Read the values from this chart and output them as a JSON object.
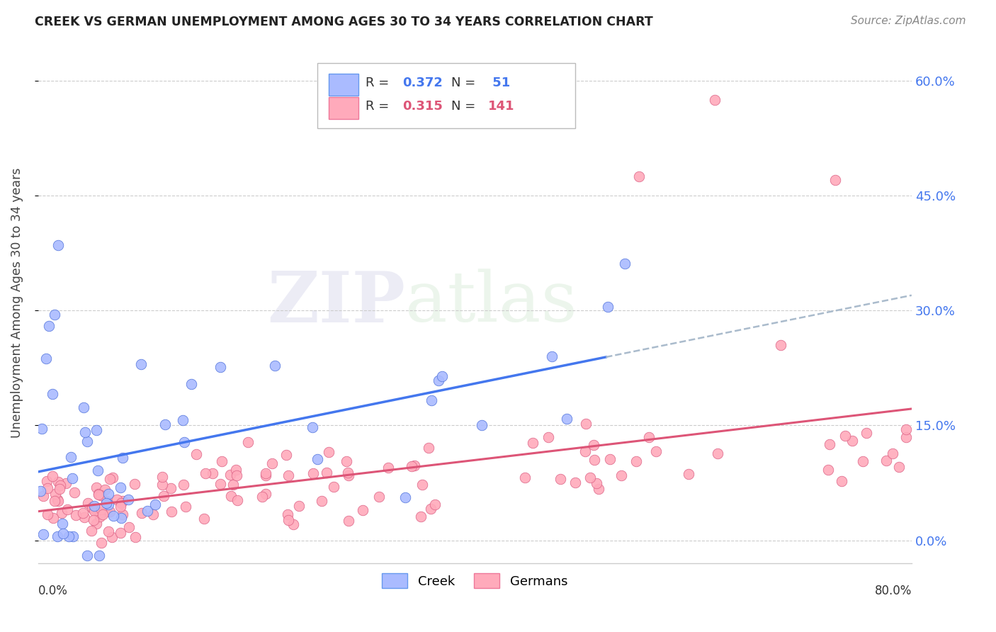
{
  "title": "CREEK VS GERMAN UNEMPLOYMENT AMONG AGES 30 TO 34 YEARS CORRELATION CHART",
  "source": "Source: ZipAtlas.com",
  "ylabel": "Unemployment Among Ages 30 to 34 years",
  "xlim": [
    0.0,
    0.8
  ],
  "ylim": [
    -0.03,
    0.65
  ],
  "yticks": [
    0.0,
    0.15,
    0.3,
    0.45,
    0.6
  ],
  "ytick_labels_right": [
    "0.0%",
    "15.0%",
    "30.0%",
    "45.0%",
    "60.0%"
  ],
  "grid_color": "#cccccc",
  "background_color": "#ffffff",
  "creek_R": 0.372,
  "creek_N": 51,
  "german_R": 0.315,
  "german_N": 141,
  "watermark_zip": "ZIP",
  "watermark_atlas": "atlas",
  "legend_creek_face": "#aabbff",
  "legend_creek_edge": "#6699ee",
  "legend_german_face": "#ffaabb",
  "legend_german_edge": "#ee7799",
  "creek_scatter_face": "#aabbff",
  "creek_scatter_edge": "#5577dd",
  "german_scatter_face": "#ffaabb",
  "german_scatter_edge": "#dd6688",
  "creek_line_color": "#4477ee",
  "german_line_color": "#dd5577",
  "ext_line_color": "#aabbcc",
  "right_tick_color": "#4477ee",
  "title_color": "#222222",
  "source_color": "#888888",
  "ylabel_color": "#444444"
}
